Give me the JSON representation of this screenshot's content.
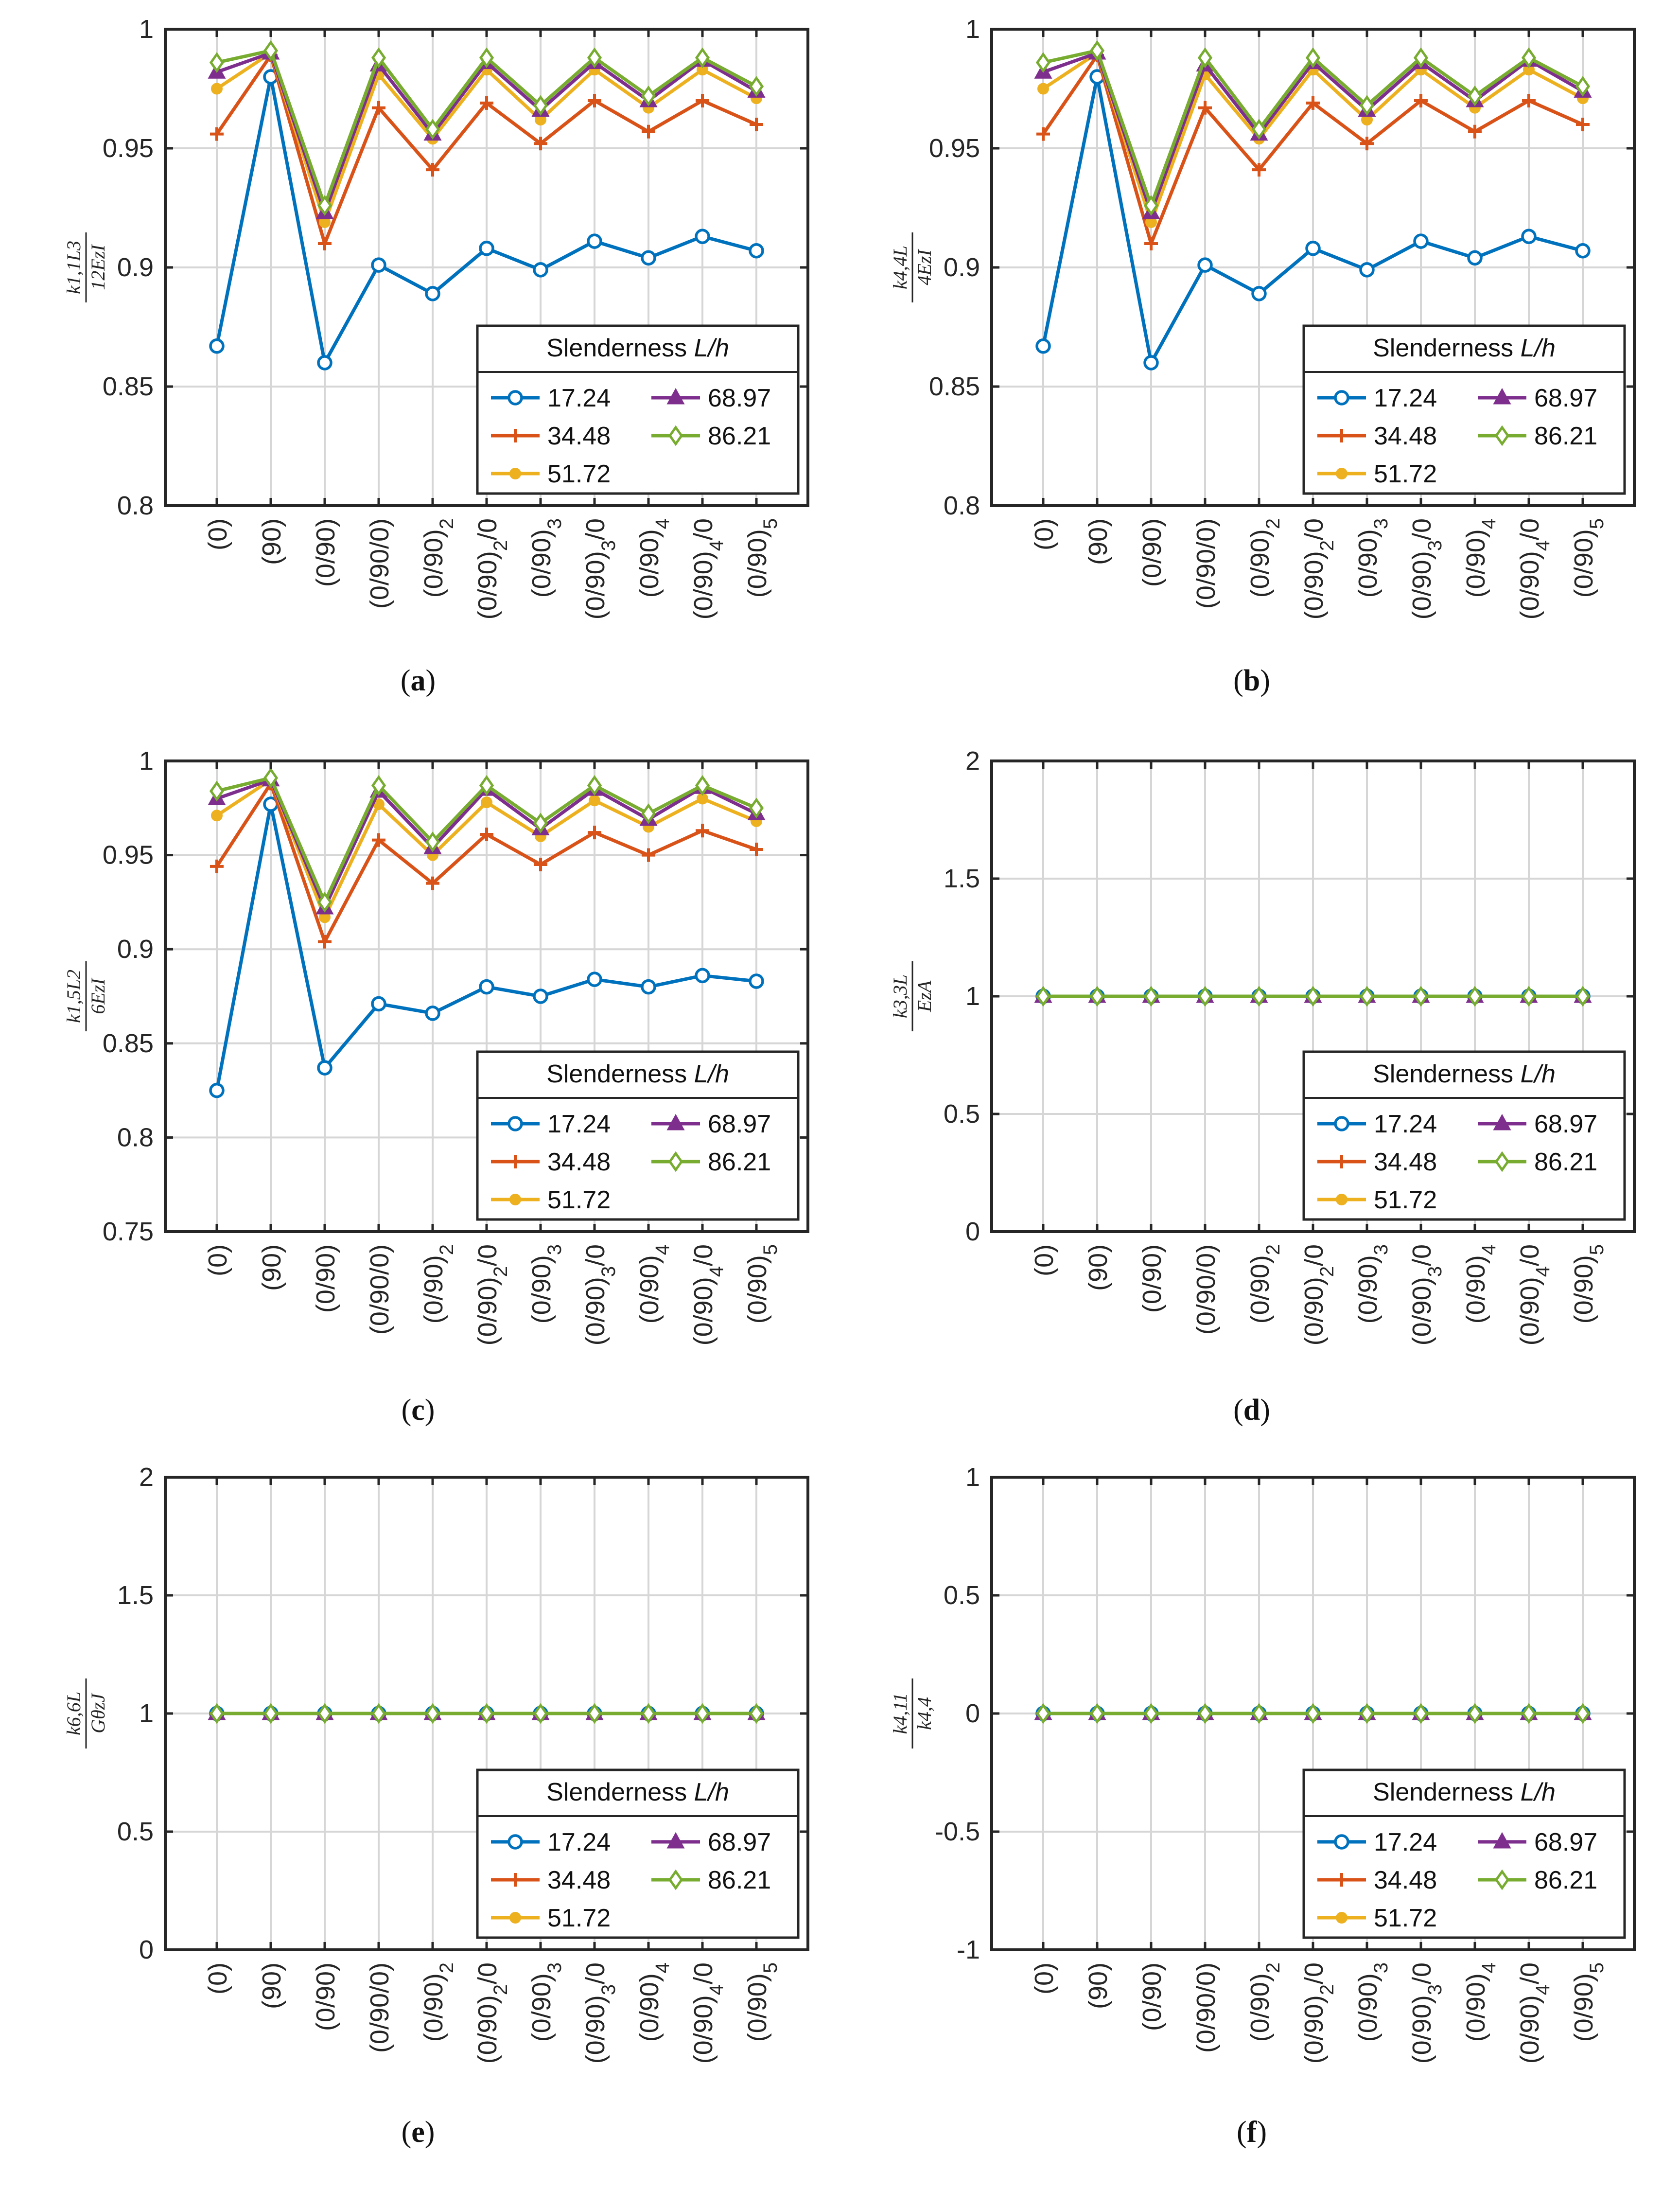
{
  "figure": {
    "legend_title": "Slenderness L/h",
    "legend_title_main": "Slenderness ",
    "legend_title_var": "L/h",
    "categories": [
      "(0)",
      "(90)",
      "(0/90)",
      "(0/90/0)",
      "(0/90)2",
      "(0/90)2/0",
      "(0/90)3",
      "(0/90)3/0",
      "(0/90)4",
      "(0/90)4/0",
      "(0/90)5"
    ],
    "series_styles": [
      {
        "name": "17.24",
        "color": "#0072BD",
        "marker": "circle"
      },
      {
        "name": "34.48",
        "color": "#D95319",
        "marker": "plus"
      },
      {
        "name": "51.72",
        "color": "#EDB120",
        "marker": "dot"
      },
      {
        "name": "68.97",
        "color": "#7E2F8E",
        "marker": "triangle"
      },
      {
        "name": "86.21",
        "color": "#77AC30",
        "marker": "diamond"
      }
    ]
  },
  "chart_data": [
    {
      "type": "line",
      "panel": "a",
      "panel_label": "(a)",
      "ylabel": "k1,1 L^3 / 12 Ez I",
      "ylabel_num": "k1,1L3",
      "ylabel_den": "12EzI",
      "ylim": [
        0.8,
        1
      ],
      "yticks": [
        0.8,
        0.85,
        0.9,
        0.95,
        1
      ],
      "ytick_labels": [
        "0.8",
        "0.85",
        "0.9",
        "0.95",
        "1"
      ],
      "series": [
        {
          "name": "17.24",
          "values": [
            0.867,
            0.98,
            0.86,
            0.901,
            0.889,
            0.908,
            0.899,
            0.911,
            0.904,
            0.913,
            0.907
          ]
        },
        {
          "name": "34.48",
          "values": [
            0.956,
            0.989,
            0.91,
            0.967,
            0.941,
            0.969,
            0.952,
            0.97,
            0.957,
            0.97,
            0.96
          ]
        },
        {
          "name": "51.72",
          "values": [
            0.975,
            0.99,
            0.919,
            0.981,
            0.954,
            0.983,
            0.962,
            0.983,
            0.967,
            0.983,
            0.971
          ]
        },
        {
          "name": "68.97",
          "values": [
            0.982,
            0.99,
            0.923,
            0.985,
            0.956,
            0.986,
            0.966,
            0.986,
            0.97,
            0.987,
            0.974
          ]
        },
        {
          "name": "86.21",
          "values": [
            0.986,
            0.991,
            0.926,
            0.988,
            0.958,
            0.988,
            0.968,
            0.988,
            0.972,
            0.988,
            0.976
          ]
        }
      ]
    },
    {
      "type": "line",
      "panel": "b",
      "panel_label": "(b)",
      "ylabel": "k4,4 L / 4 Ez I",
      "ylabel_num": "k4,4L",
      "ylabel_den": "4EzI",
      "ylim": [
        0.8,
        1
      ],
      "yticks": [
        0.8,
        0.85,
        0.9,
        0.95,
        1
      ],
      "ytick_labels": [
        "0.8",
        "0.85",
        "0.9",
        "0.95",
        "1"
      ],
      "series": [
        {
          "name": "17.24",
          "values": [
            0.867,
            0.98,
            0.86,
            0.901,
            0.889,
            0.908,
            0.899,
            0.911,
            0.904,
            0.913,
            0.907
          ]
        },
        {
          "name": "34.48",
          "values": [
            0.956,
            0.989,
            0.91,
            0.967,
            0.941,
            0.969,
            0.952,
            0.97,
            0.957,
            0.97,
            0.96
          ]
        },
        {
          "name": "51.72",
          "values": [
            0.975,
            0.99,
            0.919,
            0.981,
            0.954,
            0.983,
            0.962,
            0.983,
            0.967,
            0.983,
            0.971
          ]
        },
        {
          "name": "68.97",
          "values": [
            0.982,
            0.99,
            0.923,
            0.985,
            0.956,
            0.986,
            0.966,
            0.986,
            0.97,
            0.987,
            0.974
          ]
        },
        {
          "name": "86.21",
          "values": [
            0.986,
            0.991,
            0.926,
            0.988,
            0.958,
            0.988,
            0.968,
            0.988,
            0.972,
            0.988,
            0.976
          ]
        }
      ]
    },
    {
      "type": "line",
      "panel": "c",
      "panel_label": "(c)",
      "ylabel": "k1,5 L^2 / 6 Ez I",
      "ylabel_num": "k1,5L2",
      "ylabel_den": "6EzI",
      "ylim": [
        0.75,
        1
      ],
      "yticks": [
        0.75,
        0.8,
        0.85,
        0.9,
        0.95,
        1
      ],
      "ytick_labels": [
        "0.75",
        "0.8",
        "0.85",
        "0.9",
        "0.95",
        "1"
      ],
      "series": [
        {
          "name": "17.24",
          "values": [
            0.825,
            0.977,
            0.837,
            0.871,
            0.866,
            0.88,
            0.875,
            0.884,
            0.88,
            0.886,
            0.883
          ]
        },
        {
          "name": "34.48",
          "values": [
            0.944,
            0.988,
            0.904,
            0.958,
            0.935,
            0.961,
            0.945,
            0.962,
            0.95,
            0.963,
            0.953
          ]
        },
        {
          "name": "51.72",
          "values": [
            0.971,
            0.99,
            0.917,
            0.977,
            0.95,
            0.978,
            0.96,
            0.979,
            0.965,
            0.98,
            0.968
          ]
        },
        {
          "name": "68.97",
          "values": [
            0.98,
            0.99,
            0.922,
            0.984,
            0.954,
            0.985,
            0.964,
            0.985,
            0.969,
            0.986,
            0.972
          ]
        },
        {
          "name": "86.21",
          "values": [
            0.984,
            0.991,
            0.925,
            0.987,
            0.957,
            0.987,
            0.967,
            0.987,
            0.972,
            0.987,
            0.975
          ]
        }
      ]
    },
    {
      "type": "line",
      "panel": "d",
      "panel_label": "(d)",
      "ylabel": "k3,3 L / Ez A",
      "ylabel_num": "k3,3L",
      "ylabel_den": "EzA",
      "ylim": [
        0,
        2
      ],
      "yticks": [
        0,
        0.5,
        1,
        1.5,
        2
      ],
      "ytick_labels": [
        "0",
        "0.5",
        "1",
        "1.5",
        "2"
      ],
      "series": [
        {
          "name": "17.24",
          "values": [
            1,
            1,
            1,
            1,
            1,
            1,
            1,
            1,
            1,
            1,
            1
          ]
        },
        {
          "name": "34.48",
          "values": [
            1,
            1,
            1,
            1,
            1,
            1,
            1,
            1,
            1,
            1,
            1
          ]
        },
        {
          "name": "51.72",
          "values": [
            1,
            1,
            1,
            1,
            1,
            1,
            1,
            1,
            1,
            1,
            1
          ]
        },
        {
          "name": "68.97",
          "values": [
            1,
            1,
            1,
            1,
            1,
            1,
            1,
            1,
            1,
            1,
            1
          ]
        },
        {
          "name": "86.21",
          "values": [
            1,
            1,
            1,
            1,
            1,
            1,
            1,
            1,
            1,
            1,
            1
          ]
        }
      ]
    },
    {
      "type": "line",
      "panel": "e",
      "panel_label": "(e)",
      "ylabel": "k6,6 L / Gθz J",
      "ylabel_num": "k6,6L",
      "ylabel_den": "GθzJ",
      "ylim": [
        0,
        2
      ],
      "yticks": [
        0,
        0.5,
        1,
        1.5,
        2
      ],
      "ytick_labels": [
        "0",
        "0.5",
        "1",
        "1.5",
        "2"
      ],
      "series": [
        {
          "name": "17.24",
          "values": [
            1,
            1,
            1,
            1,
            1,
            1,
            1,
            1,
            1,
            1,
            1
          ]
        },
        {
          "name": "34.48",
          "values": [
            1,
            1,
            1,
            1,
            1,
            1,
            1,
            1,
            1,
            1,
            1
          ]
        },
        {
          "name": "51.72",
          "values": [
            1,
            1,
            1,
            1,
            1,
            1,
            1,
            1,
            1,
            1,
            1
          ]
        },
        {
          "name": "68.97",
          "values": [
            1,
            1,
            1,
            1,
            1,
            1,
            1,
            1,
            1,
            1,
            1
          ]
        },
        {
          "name": "86.21",
          "values": [
            1,
            1,
            1,
            1,
            1,
            1,
            1,
            1,
            1,
            1,
            1
          ]
        }
      ]
    },
    {
      "type": "line",
      "panel": "f",
      "panel_label": "(f)",
      "ylabel": "k4,11 / k4,4",
      "ylabel_num": "k4,11",
      "ylabel_den": "k4,4",
      "ylim": [
        -1,
        1
      ],
      "yticks": [
        -1,
        -0.5,
        0,
        0.5,
        1
      ],
      "ytick_labels": [
        "-1",
        "-0.5",
        "0",
        "0.5",
        "1"
      ],
      "series": [
        {
          "name": "17.24",
          "values": [
            0,
            0,
            0,
            0,
            0,
            0,
            0,
            0,
            0,
            0,
            0
          ]
        },
        {
          "name": "34.48",
          "values": [
            0,
            0,
            0,
            0,
            0,
            0,
            0,
            0,
            0,
            0,
            0
          ]
        },
        {
          "name": "51.72",
          "values": [
            0,
            0,
            0,
            0,
            0,
            0,
            0,
            0,
            0,
            0,
            0
          ]
        },
        {
          "name": "68.97",
          "values": [
            0,
            0,
            0,
            0,
            0,
            0,
            0,
            0,
            0,
            0,
            0
          ]
        },
        {
          "name": "86.21",
          "values": [
            0,
            0,
            0,
            0,
            0,
            0,
            0,
            0,
            0,
            0,
            0
          ]
        }
      ]
    }
  ]
}
